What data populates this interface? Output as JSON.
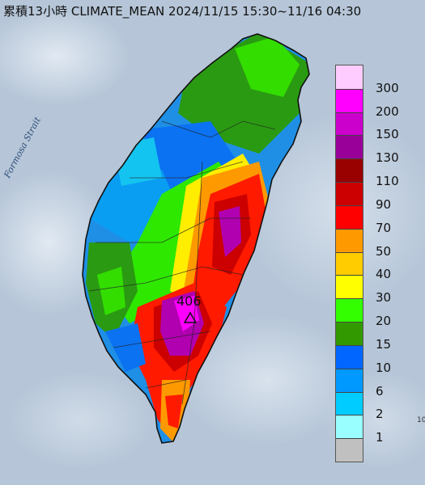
{
  "title": "累積13小時 CLIMATE_MEAN 2024/11/15 15:30~11/16 04:30",
  "strait_label": "Formosa Strait",
  "peak": {
    "value": "406"
  },
  "corner_note": "10",
  "legend": {
    "entries": [
      {
        "label": "300",
        "color": "#ffccff"
      },
      {
        "label": "200",
        "color": "#ff00ff"
      },
      {
        "label": "150",
        "color": "#cc00cc"
      },
      {
        "label": "130",
        "color": "#990099"
      },
      {
        "label": "110",
        "color": "#990000"
      },
      {
        "label": "90",
        "color": "#cc0000"
      },
      {
        "label": "70",
        "color": "#ff0000"
      },
      {
        "label": "50",
        "color": "#ff9900"
      },
      {
        "label": "40",
        "color": "#ffcc00"
      },
      {
        "label": "30",
        "color": "#ffff00"
      },
      {
        "label": "20",
        "color": "#33ff00"
      },
      {
        "label": "15",
        "color": "#339900"
      },
      {
        "label": "10",
        "color": "#0066ff"
      },
      {
        "label": "6",
        "color": "#0099ff"
      },
      {
        "label": "2",
        "color": "#00ccff"
      },
      {
        "label": "1",
        "color": "#99ffff"
      },
      {
        "label": "",
        "color": "#c0c0c0"
      }
    ]
  }
}
